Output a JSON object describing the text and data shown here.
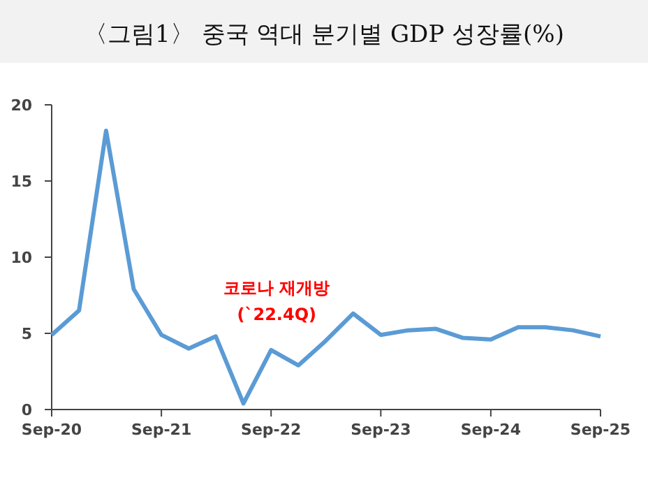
{
  "chart_data": {
    "type": "line",
    "title": "〈그림1〉 중국 역대 분기별 GDP 성장률(%)",
    "x": [
      "2020-09",
      "2020-12",
      "2021-03",
      "2021-06",
      "2021-09",
      "2021-12",
      "2022-03",
      "2022-06",
      "2022-09",
      "2022-12",
      "2023-03",
      "2023-06",
      "2023-09",
      "2023-12",
      "2024-03",
      "2024-06",
      "2024-09",
      "2024-12",
      "2025-03",
      "2025-06",
      "2025-09"
    ],
    "series": [
      {
        "color": "#5b9bd5",
        "values": [
          4.9,
          6.5,
          18.3,
          7.9,
          4.9,
          4.0,
          4.8,
          0.4,
          3.9,
          2.9,
          4.5,
          6.3,
          4.9,
          5.2,
          5.3,
          4.7,
          4.6,
          5.4,
          5.4,
          5.2,
          4.8
        ]
      }
    ],
    "xlim": [
      "2020-09",
      "2025-09"
    ],
    "xticks": [
      {
        "value": "2020-09",
        "label": "Sep-20"
      },
      {
        "value": "2021-09",
        "label": "Sep-21"
      },
      {
        "value": "2022-09",
        "label": "Sep-22"
      },
      {
        "value": "2023-09",
        "label": "Sep-23"
      },
      {
        "value": "2024-09",
        "label": "Sep-24"
      },
      {
        "value": "2025-09",
        "label": "Sep-25"
      }
    ],
    "ylim": [
      0,
      20
    ],
    "yticks": [
      0,
      5,
      10,
      15,
      20
    ],
    "grid": false,
    "marker": "none",
    "line_style": "solid",
    "annotations": [
      "코로나 재개방\n(`22.4Q)"
    ]
  }
}
